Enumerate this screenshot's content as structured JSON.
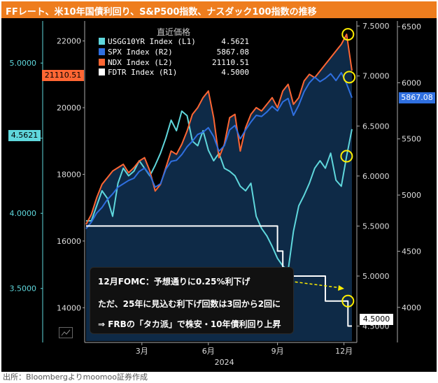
{
  "title": "FFレート、米10年国債利回り、S&P500指数、ナスダック100指数の推移",
  "source": "出所：Bloombergよりmoomoo証券作成",
  "legend": {
    "title": "直近価格",
    "items": [
      {
        "name": "USGG10YR Index (L1)",
        "value": "4.5621",
        "color": "#5fd7dc"
      },
      {
        "name": "SPX Index  (R2)",
        "value": "5867.08",
        "color": "#2f6fe0"
      },
      {
        "name": "NDX Index  (L2)",
        "value": "21110.51",
        "color": "#ff6633"
      },
      {
        "name": "FDTR Index  (R1)",
        "value": "4.5000",
        "color": "#ffffff"
      }
    ]
  },
  "annotations": {
    "line1": "12月FOMC：予想通りに0.25%利下げ",
    "line2": "ただ、25年に見込む利下げ回数は3回から2回に",
    "line3": "⇒ FRBの「タカ派」で株安・10年債利回り上昇"
  },
  "last_value_tags": {
    "ndx": "21110.51",
    "usgg": "4.5621",
    "spx": "5867.08",
    "fdtr": "4.5000"
  },
  "chart_data": {
    "type": "line",
    "title": "FFレート、米10年国債利回り、S&P500指数、ナスダック100指数の推移",
    "x_axis": {
      "ticks": [
        "3月",
        "6月",
        "9月",
        "12月"
      ],
      "year_label": "2024"
    },
    "axes": {
      "L1": {
        "ticks": [
          "3.5000",
          "4.0000",
          "4.5000",
          "5.0000"
        ],
        "range": [
          3.15,
          5.28
        ]
      },
      "L2": {
        "ticks": [
          "14000",
          "16000",
          "18000",
          "20000",
          "22000"
        ],
        "range": [
          13000,
          22600
        ]
      },
      "R1": {
        "ticks": [
          "4.5000",
          "5.0000",
          "5.5000",
          "6.0000",
          "6.5000",
          "7.0000",
          "7.5000"
        ],
        "range": [
          4.35,
          7.55
        ]
      },
      "R2": {
        "ticks": [
          "4000",
          "4500",
          "5000",
          "5500",
          "6000",
          "6500"
        ],
        "range": [
          3700,
          6550
        ]
      }
    },
    "series": [
      {
        "name": "USGG10YR Index (L1)",
        "axis": "L1",
        "color": "#5fd7dc",
        "x": [
          0,
          0.02,
          0.04,
          0.06,
          0.08,
          0.1,
          0.12,
          0.14,
          0.16,
          0.18,
          0.2,
          0.22,
          0.24,
          0.26,
          0.28,
          0.3,
          0.32,
          0.34,
          0.36,
          0.38,
          0.4,
          0.42,
          0.44,
          0.46,
          0.48,
          0.5,
          0.52,
          0.54,
          0.56,
          0.58,
          0.6,
          0.62,
          0.64,
          0.66,
          0.68,
          0.7,
          0.72,
          0.74,
          0.76,
          0.78,
          0.8,
          0.82,
          0.84,
          0.86,
          0.88,
          0.9,
          0.92,
          0.94,
          0.96,
          0.98,
          1.0
        ],
        "values": [
          3.95,
          3.95,
          4.05,
          4.15,
          4.1,
          3.98,
          4.2,
          4.3,
          4.25,
          4.28,
          4.35,
          4.3,
          4.25,
          4.32,
          4.4,
          4.5,
          4.62,
          4.55,
          4.68,
          4.65,
          4.48,
          4.45,
          4.55,
          4.42,
          4.35,
          4.4,
          4.3,
          4.28,
          4.25,
          4.18,
          4.15,
          4.2,
          3.98,
          3.9,
          3.85,
          3.78,
          3.7,
          3.65,
          3.62,
          3.88,
          4.05,
          4.12,
          4.2,
          4.3,
          4.35,
          4.3,
          4.4,
          4.22,
          4.18,
          4.38,
          4.56
        ]
      },
      {
        "name": "SPX Index  (R2)",
        "axis": "R2",
        "color": "#2f6fe0",
        "x": [
          0,
          0.02,
          0.04,
          0.06,
          0.08,
          0.1,
          0.12,
          0.14,
          0.16,
          0.18,
          0.2,
          0.22,
          0.24,
          0.26,
          0.28,
          0.3,
          0.32,
          0.34,
          0.36,
          0.38,
          0.4,
          0.42,
          0.44,
          0.46,
          0.48,
          0.5,
          0.52,
          0.54,
          0.56,
          0.58,
          0.6,
          0.62,
          0.64,
          0.66,
          0.68,
          0.7,
          0.72,
          0.74,
          0.76,
          0.78,
          0.8,
          0.82,
          0.84,
          0.86,
          0.88,
          0.9,
          0.92,
          0.94,
          0.96,
          0.98,
          1.0
        ],
        "values": [
          4700,
          4760,
          4840,
          4890,
          4960,
          5010,
          5070,
          5100,
          5130,
          5150,
          5210,
          5240,
          5180,
          5070,
          5100,
          5230,
          5300,
          5310,
          5360,
          5430,
          5480,
          5540,
          5560,
          5600,
          5520,
          5390,
          5440,
          5580,
          5620,
          5500,
          5580,
          5650,
          5710,
          5700,
          5740,
          5790,
          5750,
          5830,
          5860,
          5710,
          5800,
          5920,
          6000,
          6050,
          6010,
          6040,
          6080,
          6020,
          6090,
          5990,
          5867
        ]
      },
      {
        "name": "NDX Index  (L2)",
        "axis": "L2",
        "color": "#ff6633",
        "x": [
          0,
          0.02,
          0.04,
          0.06,
          0.08,
          0.1,
          0.12,
          0.14,
          0.16,
          0.18,
          0.2,
          0.22,
          0.24,
          0.26,
          0.28,
          0.3,
          0.32,
          0.34,
          0.36,
          0.38,
          0.4,
          0.42,
          0.44,
          0.46,
          0.48,
          0.5,
          0.52,
          0.54,
          0.56,
          0.58,
          0.6,
          0.62,
          0.64,
          0.66,
          0.68,
          0.7,
          0.72,
          0.74,
          0.76,
          0.78,
          0.8,
          0.82,
          0.84,
          0.86,
          0.88,
          0.9,
          0.92,
          0.94,
          0.96,
          0.98,
          1.0
        ],
        "values": [
          16500,
          16800,
          17300,
          17700,
          17900,
          18100,
          18200,
          18300,
          18050,
          18200,
          18400,
          18500,
          18100,
          17500,
          17700,
          18200,
          18700,
          18600,
          18900,
          19300,
          19800,
          20000,
          20300,
          20500,
          19700,
          18500,
          18900,
          19700,
          19800,
          18700,
          19400,
          19800,
          20000,
          19900,
          20100,
          20300,
          20000,
          20500,
          20700,
          20100,
          20300,
          20800,
          21000,
          20900,
          21100,
          21300,
          21500,
          21700,
          21900,
          22200,
          21110
        ]
      },
      {
        "name": "FDTR Index  (R1)",
        "axis": "R1",
        "color": "#ffffff",
        "step": true,
        "x": [
          0,
          0.72,
          0.72,
          0.74,
          0.74,
          0.9,
          0.9,
          0.985,
          0.985,
          1.0
        ],
        "values": [
          5.5,
          5.5,
          5.25,
          5.25,
          5.0,
          5.0,
          4.75,
          4.75,
          4.5,
          4.5
        ]
      }
    ],
    "highlight_circles": [
      "ndx-peak",
      "spx-latest",
      "usgg-latest",
      "fdtr-latest"
    ]
  }
}
